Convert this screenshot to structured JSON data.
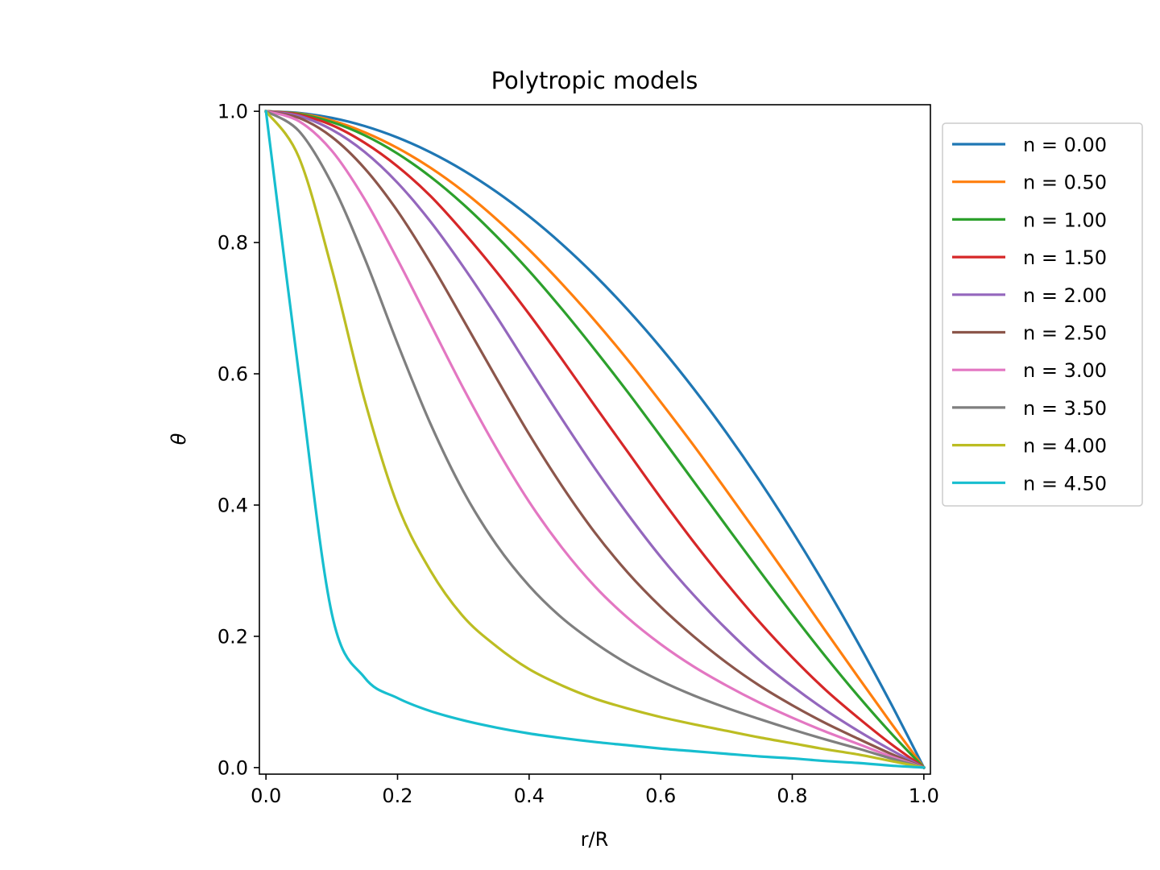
{
  "chart_data": {
    "type": "line",
    "title": "Polytropic models",
    "xlabel": "r/R",
    "ylabel": "θ",
    "xlim": [
      -0.01,
      1.01
    ],
    "ylim": [
      -0.01,
      1.01
    ],
    "xticks": [
      0.0,
      0.2,
      0.4,
      0.6,
      0.8,
      1.0
    ],
    "yticks": [
      0.0,
      0.2,
      0.4,
      0.6,
      0.8,
      1.0
    ],
    "xtick_labels": [
      "0.0",
      "0.2",
      "0.4",
      "0.6",
      "0.8",
      "1.0"
    ],
    "ytick_labels": [
      "0.0",
      "0.2",
      "0.4",
      "0.6",
      "0.8",
      "1.0"
    ],
    "grid": false,
    "legend_position": "outside-right-top",
    "x": [
      0.0,
      0.05,
      0.1,
      0.15,
      0.2,
      0.25,
      0.3,
      0.35,
      0.4,
      0.45,
      0.5,
      0.55,
      0.6,
      0.65,
      0.7,
      0.75,
      0.8,
      0.85,
      0.9,
      0.95,
      1.0
    ],
    "series": [
      {
        "name": "n = 0.00",
        "color": "#1f77b4",
        "values": [
          1.0,
          0.9975,
          0.99,
          0.9775,
          0.96,
          0.9375,
          0.91,
          0.8775,
          0.84,
          0.7975,
          0.75,
          0.6975,
          0.64,
          0.5775,
          0.51,
          0.4375,
          0.36,
          0.2775,
          0.19,
          0.0975,
          0.0
        ]
      },
      {
        "name": "n = 0.50",
        "color": "#ff7f0e",
        "values": [
          1.0,
          0.9965,
          0.986,
          0.968,
          0.944,
          0.914,
          0.878,
          0.836,
          0.789,
          0.737,
          0.681,
          0.621,
          0.557,
          0.491,
          0.422,
          0.352,
          0.281,
          0.209,
          0.138,
          0.068,
          0.0
        ]
      },
      {
        "name": "n = 1.00",
        "color": "#2ca02c",
        "values": [
          1.0,
          0.9959,
          0.9836,
          0.9634,
          0.9355,
          0.9003,
          0.8582,
          0.8099,
          0.7568,
          0.6985,
          0.6366,
          0.572,
          0.5046,
          0.4363,
          0.3679,
          0.3001,
          0.2339,
          0.17,
          0.1093,
          0.0525,
          0.0
        ]
      },
      {
        "name": "n = 1.50",
        "color": "#d62728",
        "values": [
          1.0,
          0.9948,
          0.979,
          0.952,
          0.916,
          0.871,
          0.816,
          0.756,
          0.691,
          0.622,
          0.551,
          0.481,
          0.411,
          0.344,
          0.281,
          0.222,
          0.168,
          0.119,
          0.076,
          0.036,
          0.0
        ]
      },
      {
        "name": "n = 2.00",
        "color": "#9467bd",
        "values": [
          1.0,
          0.993,
          0.972,
          0.938,
          0.891,
          0.832,
          0.763,
          0.688,
          0.609,
          0.531,
          0.456,
          0.386,
          0.321,
          0.263,
          0.211,
          0.164,
          0.124,
          0.088,
          0.056,
          0.027,
          0.0
        ]
      },
      {
        "name": "n = 2.50",
        "color": "#8c564b",
        "values": [
          1.0,
          0.99,
          0.961,
          0.913,
          0.848,
          0.769,
          0.682,
          0.594,
          0.508,
          0.429,
          0.358,
          0.297,
          0.245,
          0.2,
          0.16,
          0.125,
          0.095,
          0.068,
          0.044,
          0.021,
          0.0
        ]
      },
      {
        "name": "n = 3.00",
        "color": "#e377c2",
        "values": [
          1.0,
          0.985,
          0.94,
          0.866,
          0.774,
          0.676,
          0.578,
          0.487,
          0.405,
          0.335,
          0.276,
          0.228,
          0.188,
          0.154,
          0.125,
          0.099,
          0.076,
          0.055,
          0.036,
          0.017,
          0.0
        ]
      },
      {
        "name": "n = 3.50",
        "color": "#7f7f7f",
        "values": [
          1.0,
          0.97,
          0.89,
          0.776,
          0.646,
          0.524,
          0.421,
          0.34,
          0.277,
          0.228,
          0.19,
          0.158,
          0.132,
          0.11,
          0.091,
          0.074,
          0.058,
          0.043,
          0.029,
          0.014,
          0.0
        ]
      },
      {
        "name": "n = 4.00",
        "color": "#bcbd22",
        "values": [
          1.0,
          0.93,
          0.76,
          0.56,
          0.4,
          0.3,
          0.23,
          0.185,
          0.15,
          0.125,
          0.105,
          0.09,
          0.077,
          0.066,
          0.056,
          0.046,
          0.037,
          0.028,
          0.02,
          0.01,
          0.0
        ]
      },
      {
        "name": "n = 4.50",
        "color": "#17becf",
        "values": [
          1.0,
          0.6,
          0.235,
          0.137,
          0.106,
          0.086,
          0.072,
          0.061,
          0.052,
          0.045,
          0.039,
          0.034,
          0.029,
          0.025,
          0.021,
          0.017,
          0.014,
          0.01,
          0.007,
          0.003,
          0.0
        ]
      }
    ]
  }
}
